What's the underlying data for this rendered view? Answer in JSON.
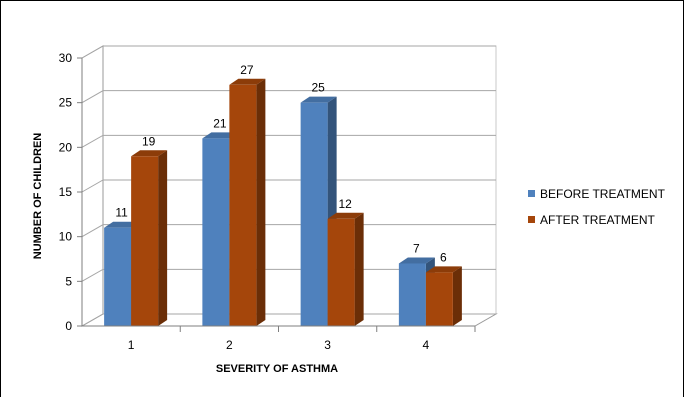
{
  "chart_data": {
    "type": "bar",
    "title": "",
    "xlabel": "SEVERITY OF ASTHMA",
    "ylabel": "NUMBER OF CHILDREN",
    "categories": [
      "1",
      "2",
      "3",
      "4"
    ],
    "series": [
      {
        "name": "BEFORE TREATMENT",
        "values": [
          11,
          21,
          25,
          7
        ],
        "color": "#4F81BD"
      },
      {
        "name": "AFTER TREATMENT",
        "values": [
          19,
          27,
          12,
          6
        ],
        "color": "#A5460B"
      }
    ],
    "ylim": [
      0,
      30
    ],
    "yticks": [
      0,
      5,
      10,
      15,
      20,
      25,
      30
    ],
    "grid": true,
    "legend": "right",
    "style": "3d-clustered-column"
  }
}
